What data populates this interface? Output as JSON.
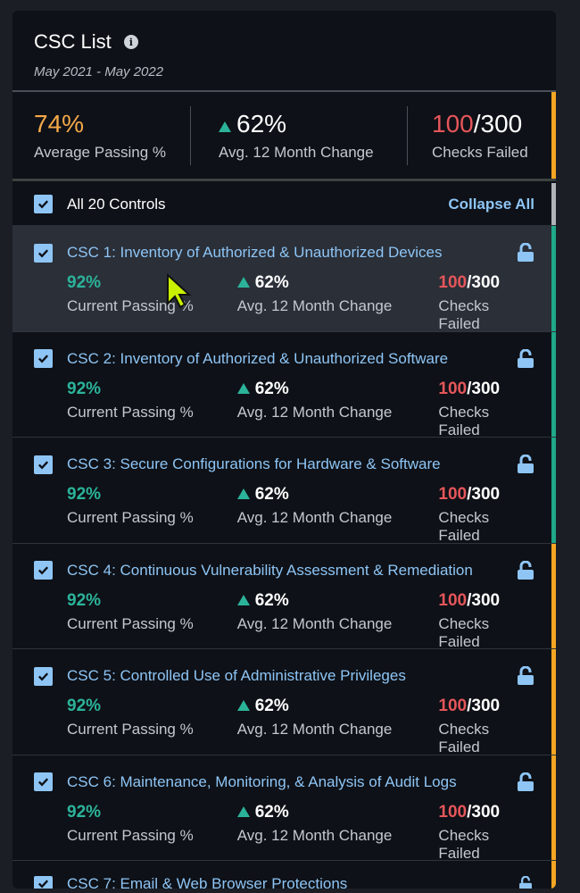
{
  "header": {
    "title": "CSC List",
    "info_icon": "info-icon",
    "date_range": "May 2021 - May 2022"
  },
  "summary": {
    "avg_passing": "74%",
    "avg_passing_label": "Average Passing %",
    "change": "62%",
    "change_label": "Avg. 12 Month Change",
    "failed": "100",
    "total": "/300",
    "failed_label": "Checks Failed",
    "accent": "#f5a623"
  },
  "controls": {
    "label": "All 20 Controls",
    "collapse": "Collapse All",
    "checked": true
  },
  "colors": {
    "teal": "#1fa88a",
    "orange": "#f5a623",
    "link": "#8ec5f5",
    "red": "#e5565a"
  },
  "items": [
    {
      "name": "CSC 1: Inventory of Authorized & Unauthorized Devices",
      "passing": "92%",
      "passing_label": "Current Passing %",
      "change": "62%",
      "change_label": "Avg. 12 Month Change",
      "failed": "100",
      "total": "/300",
      "failed_label": "Checks Failed",
      "status": "teal"
    },
    {
      "name": "CSC 2: Inventory of Authorized & Unauthorized Software",
      "passing": "92%",
      "passing_label": "Current Passing %",
      "change": "62%",
      "change_label": "Avg. 12 Month Change",
      "failed": "100",
      "total": "/300",
      "failed_label": "Checks Failed",
      "status": "teal"
    },
    {
      "name": "CSC 3: Secure Configurations for Hardware & Software",
      "passing": "92%",
      "passing_label": "Current Passing %",
      "change": "62%",
      "change_label": "Avg. 12 Month Change",
      "failed": "100",
      "total": "/300",
      "failed_label": "Checks Failed",
      "status": "teal"
    },
    {
      "name": "CSC 4: Continuous Vulnerability Assessment & Remediation",
      "passing": "92%",
      "passing_label": "Current Passing %",
      "change": "62%",
      "change_label": "Avg. 12 Month Change",
      "failed": "100",
      "total": "/300",
      "failed_label": "Checks Failed",
      "status": "orange"
    },
    {
      "name": "CSC 5: Controlled Use of Administrative Privileges",
      "passing": "92%",
      "passing_label": "Current Passing %",
      "change": "62%",
      "change_label": "Avg. 12 Month Change",
      "failed": "100",
      "total": "/300",
      "failed_label": "Checks Failed",
      "status": "orange"
    },
    {
      "name": "CSC 6: Maintenance, Monitoring, & Analysis of Audit Logs",
      "passing": "92%",
      "passing_label": "Current Passing %",
      "change": "62%",
      "change_label": "Avg. 12 Month Change",
      "failed": "100",
      "total": "/300",
      "failed_label": "Checks Failed",
      "status": "orange"
    },
    {
      "name": "CSC 7: Email & Web Browser Protections",
      "passing": "",
      "passing_label": "",
      "change": "",
      "change_label": "",
      "failed": "",
      "total": "",
      "failed_label": "",
      "status": "orange"
    }
  ]
}
